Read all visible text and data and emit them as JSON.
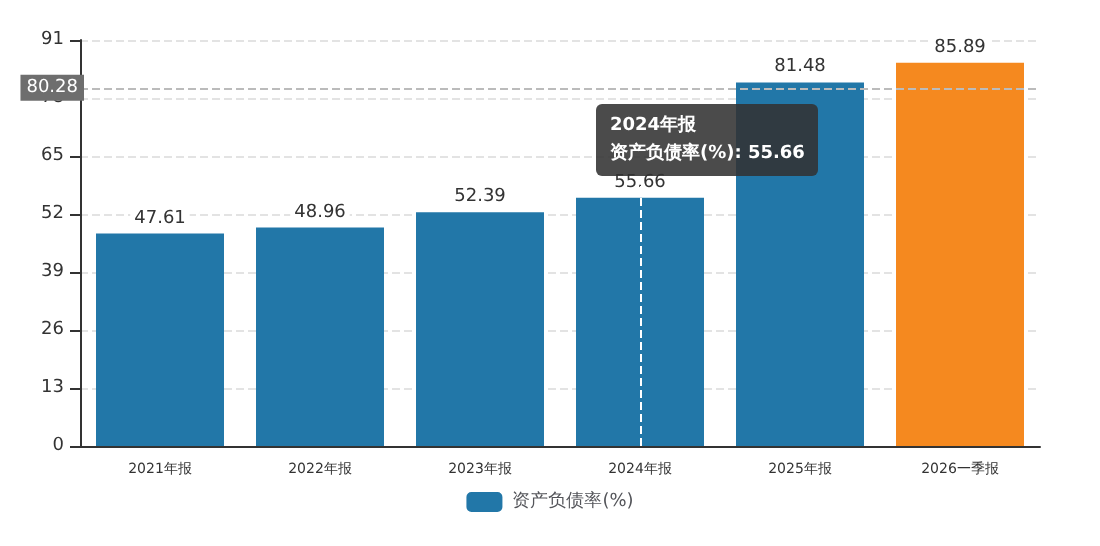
{
  "chart_data": {
    "type": "bar",
    "categories": [
      "2021年报",
      "2022年报",
      "2023年报",
      "2024年报",
      "2025年报",
      "2026一季报"
    ],
    "series": [
      {
        "name": "资产负债率(%)",
        "color": "#2277a8",
        "colors": [
          "#2277a8",
          "#2277a8",
          "#2277a8",
          "#2277a8",
          "#2277a8",
          "#f5891f"
        ],
        "values": [
          47.61,
          48.96,
          52.39,
          55.66,
          81.48,
          85.89
        ]
      }
    ],
    "ylim": [
      0,
      91
    ],
    "yticks": [
      0,
      13,
      26,
      39,
      52,
      65,
      78,
      91
    ],
    "grid": "y",
    "legend": "bottom",
    "data_labels": true,
    "ref_lines": [
      {
        "axis": "y",
        "value": 80.28,
        "label": "80.28",
        "line_style": "dashed",
        "color": "#bbbbbb"
      },
      {
        "axis": "x",
        "value": "2024年报",
        "line_style": "dashed",
        "color": "#ffffff"
      }
    ],
    "annotations": [
      "2024年报",
      "资产负债率(%): 55.66"
    ]
  }
}
